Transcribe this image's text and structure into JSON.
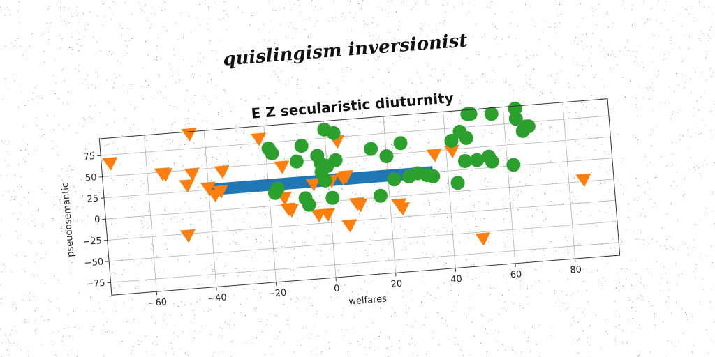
{
  "chart_data": {
    "type": "scatter",
    "suptitle": "quislingism inversionist",
    "title": "E Z secularistic diuturnity",
    "xlabel": "welfares",
    "ylabel": "pseudosemantic",
    "xlim": [
      -75,
      95
    ],
    "ylim": [
      -90,
      95
    ],
    "xticks": [
      -60,
      -40,
      -20,
      0,
      20,
      40,
      60,
      80
    ],
    "yticks": [
      -75,
      -50,
      -25,
      0,
      25,
      50,
      75
    ],
    "grid": true,
    "rotation_degrees": -4.5,
    "colors": {
      "blue": "#1f77b4",
      "orange": "#ff7f0e",
      "green": "#2ca02c"
    },
    "bar": {
      "x_start": -40,
      "x_end": 35,
      "y_center": 25,
      "height": 14,
      "color": "#1f77b4"
    },
    "series": [
      {
        "marker": "triangle-down",
        "color": "#ff7f0e",
        "points": [
          [
            -72,
            65
          ],
          [
            -55,
            48
          ],
          [
            -54,
            47
          ],
          [
            -45,
            92
          ],
          [
            -45,
            45
          ],
          [
            -47,
            32
          ],
          [
            -48,
            -27
          ],
          [
            -40,
            27
          ],
          [
            -38,
            18
          ],
          [
            -36,
            22
          ],
          [
            -35,
            45
          ],
          [
            -22,
            80
          ],
          [
            -15,
            45
          ],
          [
            -15,
            8
          ],
          [
            -14,
            -5
          ],
          [
            -13,
            -7
          ],
          [
            -5,
            22
          ],
          [
            -4,
            -15
          ],
          [
            -1,
            -15
          ],
          [
            1,
            24
          ],
          [
            4,
            70
          ],
          [
            5,
            26
          ],
          [
            6,
            28
          ],
          [
            6,
            -30
          ],
          [
            9,
            -5
          ],
          [
            10,
            -7
          ],
          [
            23,
            -10
          ],
          [
            24,
            -15
          ],
          [
            28,
            22
          ],
          [
            36,
            45
          ],
          [
            42,
            48
          ],
          [
            50,
            -58
          ],
          [
            85,
            2
          ]
        ]
      },
      {
        "marker": "circle",
        "color": "#2ca02c",
        "points": [
          [
            -19,
            68
          ],
          [
            -18,
            62
          ],
          [
            -17,
            20
          ],
          [
            -18,
            15
          ],
          [
            -10,
            50
          ],
          [
            -8,
            68
          ],
          [
            -8,
            6
          ],
          [
            -7,
            -2
          ],
          [
            -3,
            55
          ],
          [
            -2,
            45
          ],
          [
            -2,
            35
          ],
          [
            -1,
            25
          ],
          [
            0,
            85
          ],
          [
            0,
            42
          ],
          [
            1,
            4
          ],
          [
            3,
            80
          ],
          [
            3,
            48
          ],
          [
            15,
            58
          ],
          [
            17,
            2
          ],
          [
            20,
            48
          ],
          [
            22,
            20
          ],
          [
            25,
            62
          ],
          [
            27,
            22
          ],
          [
            30,
            25
          ],
          [
            33,
            22
          ],
          [
            35,
            20
          ],
          [
            42,
            60
          ],
          [
            43,
            10
          ],
          [
            45,
            70
          ],
          [
            46,
            35
          ],
          [
            47,
            62
          ],
          [
            48,
            90
          ],
          [
            49,
            90
          ],
          [
            50,
            35
          ],
          [
            54,
            38
          ],
          [
            55,
            32
          ],
          [
            56,
            88
          ],
          [
            62,
            26
          ],
          [
            64,
            92
          ],
          [
            64,
            80
          ],
          [
            66,
            65
          ],
          [
            67,
            70
          ],
          [
            68,
            70
          ]
        ]
      }
    ]
  }
}
